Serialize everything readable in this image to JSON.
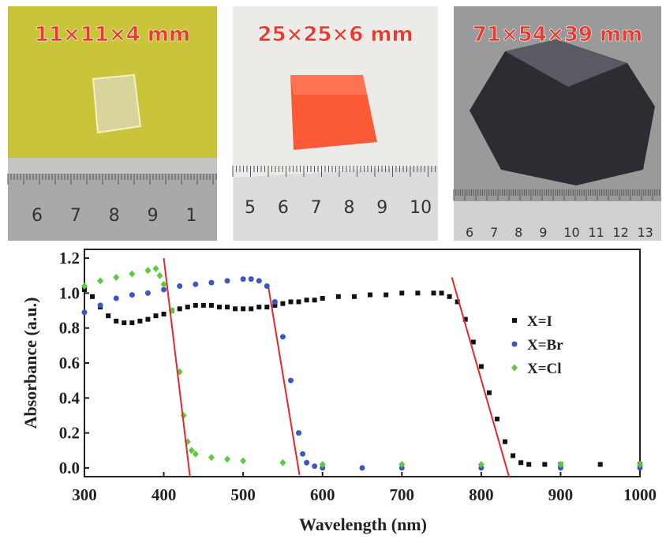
{
  "photos": [
    {
      "label": "11×11×4  mm",
      "ruler": [
        "6",
        "7",
        "8",
        "9",
        "1"
      ]
    },
    {
      "label": "25×25×6  mm",
      "ruler": [
        "5",
        "6",
        "7",
        "8",
        "9",
        "10"
      ]
    },
    {
      "label": "71×54×39 mm",
      "ruler": [
        "6",
        "7",
        "8",
        "9",
        "10",
        "11",
        "12",
        "13"
      ]
    }
  ],
  "chart_data": {
    "type": "scatter",
    "xlabel": "Wavelength (nm)",
    "ylabel": "Absorbance (a.u.)",
    "xlim": [
      300,
      1000
    ],
    "ylim": [
      -0.05,
      1.25
    ],
    "xticks": [
      300,
      400,
      500,
      600,
      700,
      800,
      900,
      1000
    ],
    "yticks": [
      {
        "value": 0,
        "label": "0.0"
      },
      0.2,
      0.4,
      0.6,
      0.8,
      {
        "value": 1,
        "label": "1.0"
      },
      1.2
    ],
    "legend": "right",
    "series": [
      {
        "name": "X=I",
        "color": "#111111",
        "marker": "square",
        "x": [
          300,
          310,
          320,
          330,
          340,
          350,
          360,
          370,
          380,
          390,
          400,
          410,
          420,
          430,
          440,
          450,
          460,
          470,
          480,
          490,
          500,
          510,
          520,
          530,
          540,
          550,
          560,
          570,
          580,
          590,
          600,
          620,
          640,
          660,
          680,
          700,
          720,
          740,
          750,
          760,
          770,
          780,
          790,
          800,
          810,
          820,
          830,
          840,
          850,
          860,
          880,
          900,
          950,
          1000
        ],
        "values": [
          1.02,
          0.98,
          0.92,
          0.87,
          0.84,
          0.83,
          0.83,
          0.84,
          0.85,
          0.87,
          0.88,
          0.9,
          0.91,
          0.92,
          0.93,
          0.93,
          0.93,
          0.92,
          0.92,
          0.91,
          0.91,
          0.91,
          0.92,
          0.92,
          0.93,
          0.94,
          0.95,
          0.95,
          0.96,
          0.96,
          0.97,
          0.98,
          0.98,
          0.99,
          0.99,
          1.0,
          1.0,
          1.0,
          1.0,
          0.98,
          0.95,
          0.85,
          0.72,
          0.58,
          0.43,
          0.28,
          0.15,
          0.07,
          0.03,
          0.02,
          0.02,
          0.02,
          0.02,
          0.02
        ]
      },
      {
        "name": "X=Br",
        "color": "#3a57c4",
        "marker": "circle",
        "x": [
          300,
          320,
          340,
          360,
          380,
          400,
          420,
          440,
          460,
          480,
          500,
          510,
          520,
          530,
          540,
          550,
          560,
          570,
          575,
          580,
          590,
          600,
          650,
          700,
          800,
          900,
          1000
        ],
        "values": [
          0.89,
          0.93,
          0.97,
          0.99,
          1.0,
          1.02,
          1.04,
          1.05,
          1.06,
          1.07,
          1.08,
          1.08,
          1.07,
          1.04,
          0.95,
          0.75,
          0.5,
          0.2,
          0.08,
          0.03,
          0.01,
          0.0,
          0.0,
          0.0,
          0.0,
          0.0,
          0.0
        ]
      },
      {
        "name": "X=Cl",
        "color": "#5ccc3c",
        "marker": "diamond",
        "x": [
          300,
          320,
          340,
          360,
          380,
          390,
          395,
          400,
          410,
          420,
          425,
          430,
          435,
          440,
          460,
          480,
          500,
          550,
          600,
          700,
          800,
          900,
          1000
        ],
        "values": [
          1.04,
          1.07,
          1.09,
          1.11,
          1.13,
          1.14,
          1.1,
          1.05,
          0.9,
          0.55,
          0.3,
          0.15,
          0.1,
          0.08,
          0.06,
          0.05,
          0.04,
          0.03,
          0.02,
          0.02,
          0.02,
          0.02,
          0.02
        ]
      }
    ],
    "fit_lines": [
      {
        "color": "#e8262a",
        "x": [
          400,
          433
        ],
        "values": [
          1.2,
          -0.05
        ]
      },
      {
        "color": "#e8262a",
        "x": [
          532,
          571
        ],
        "values": [
          1.03,
          -0.04
        ]
      },
      {
        "color": "#e8262a",
        "x": [
          763,
          835
        ],
        "values": [
          1.09,
          -0.05
        ]
      }
    ]
  }
}
